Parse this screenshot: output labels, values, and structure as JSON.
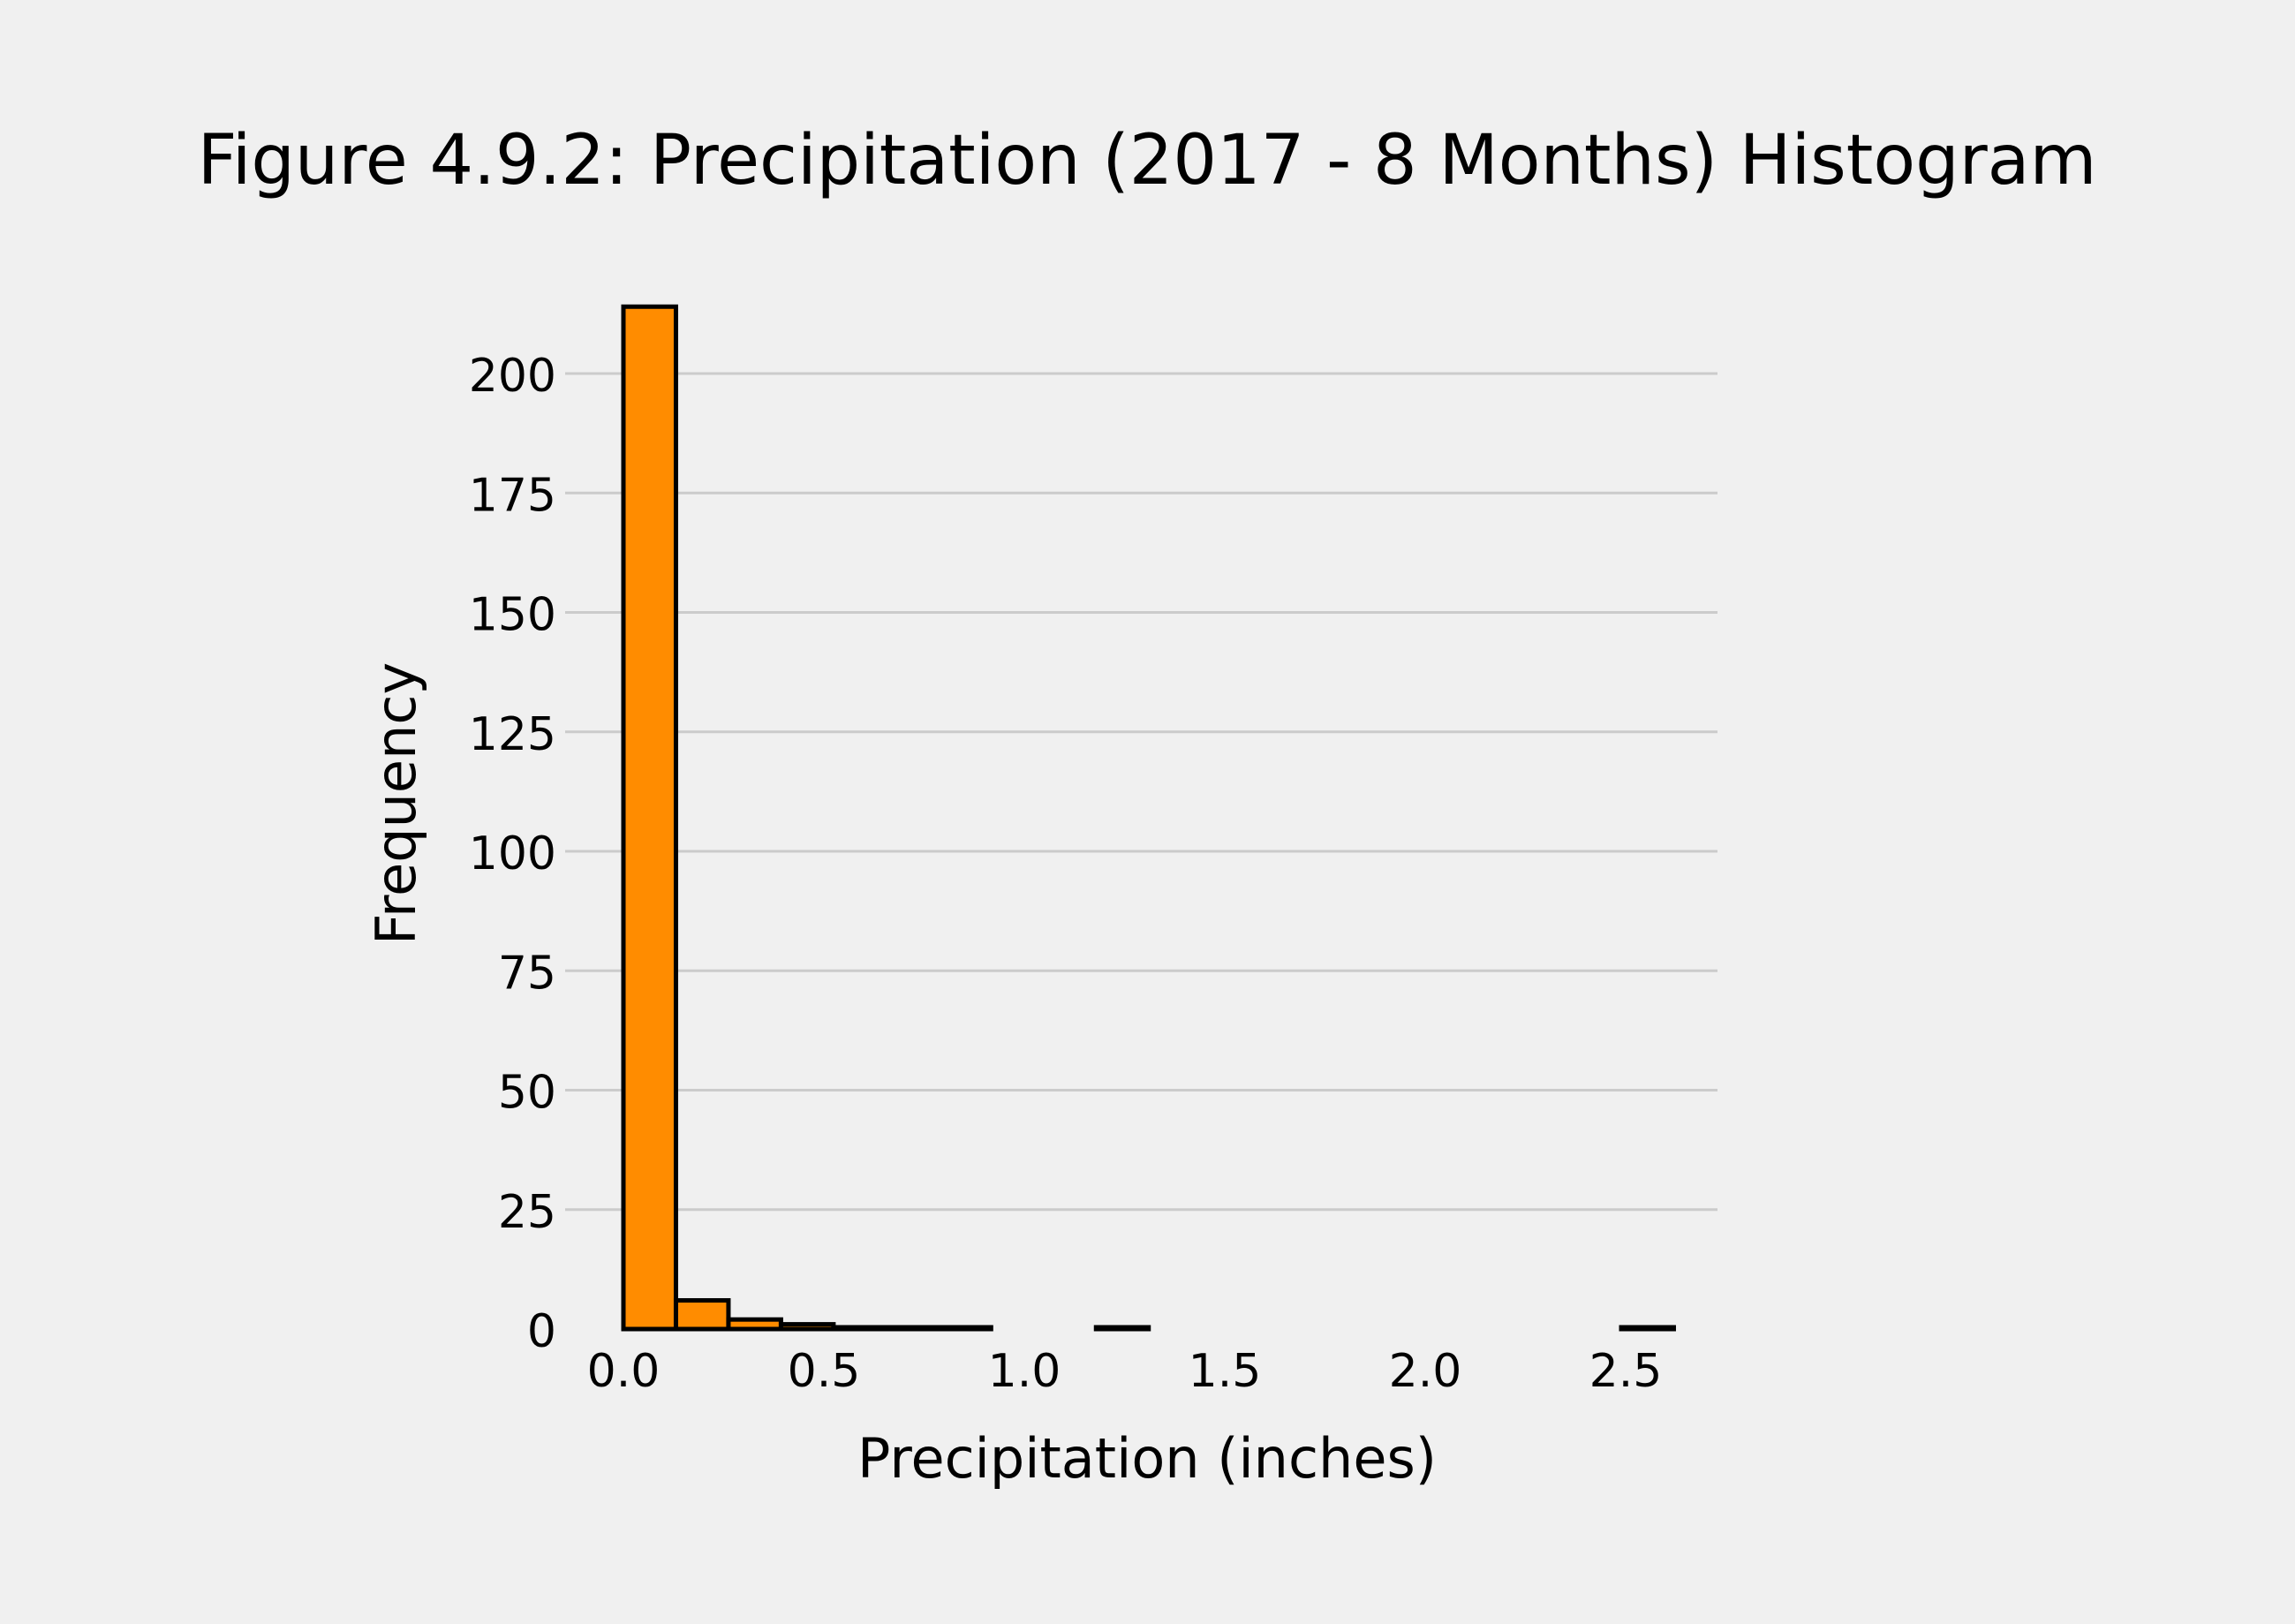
{
  "chart_data": {
    "type": "bar",
    "title": "Figure 4.9.2: Precipitation (2017 - 8 Months) Histogram",
    "xlabel": "Precipitation (inches)",
    "ylabel": "Frequency",
    "xlim": [
      -0.1,
      2.73
    ],
    "ylim": [
      0,
      220
    ],
    "xticks": [
      "0.0",
      "0.5",
      "1.0",
      "1.5",
      "2.0",
      "2.5"
    ],
    "yticks": [
      "0",
      "25",
      "50",
      "75",
      "100",
      "125",
      "150",
      "175",
      "200"
    ],
    "grid": "horizontal",
    "bin_width": 0.131,
    "bins": [
      {
        "x0": 0.0,
        "x1": 0.131,
        "count": 214
      },
      {
        "x0": 0.131,
        "x1": 0.262,
        "count": 6
      },
      {
        "x0": 0.262,
        "x1": 0.393,
        "count": 2
      },
      {
        "x0": 0.393,
        "x1": 0.524,
        "count": 1
      },
      {
        "x0": 0.524,
        "x1": 0.655,
        "count": 0
      },
      {
        "x0": 0.655,
        "x1": 0.786,
        "count": 0
      },
      {
        "x0": 0.786,
        "x1": 0.917,
        "count": 0
      },
      {
        "x0": 1.179,
        "x1": 1.31,
        "count": 0
      },
      {
        "x0": 2.489,
        "x1": 2.62,
        "count": 0
      }
    ],
    "colors": {
      "bar_fill": "#ff8c00",
      "bar_edge": "#000000",
      "grid": "#cbcbcb",
      "background": "#f0f0f0"
    }
  }
}
